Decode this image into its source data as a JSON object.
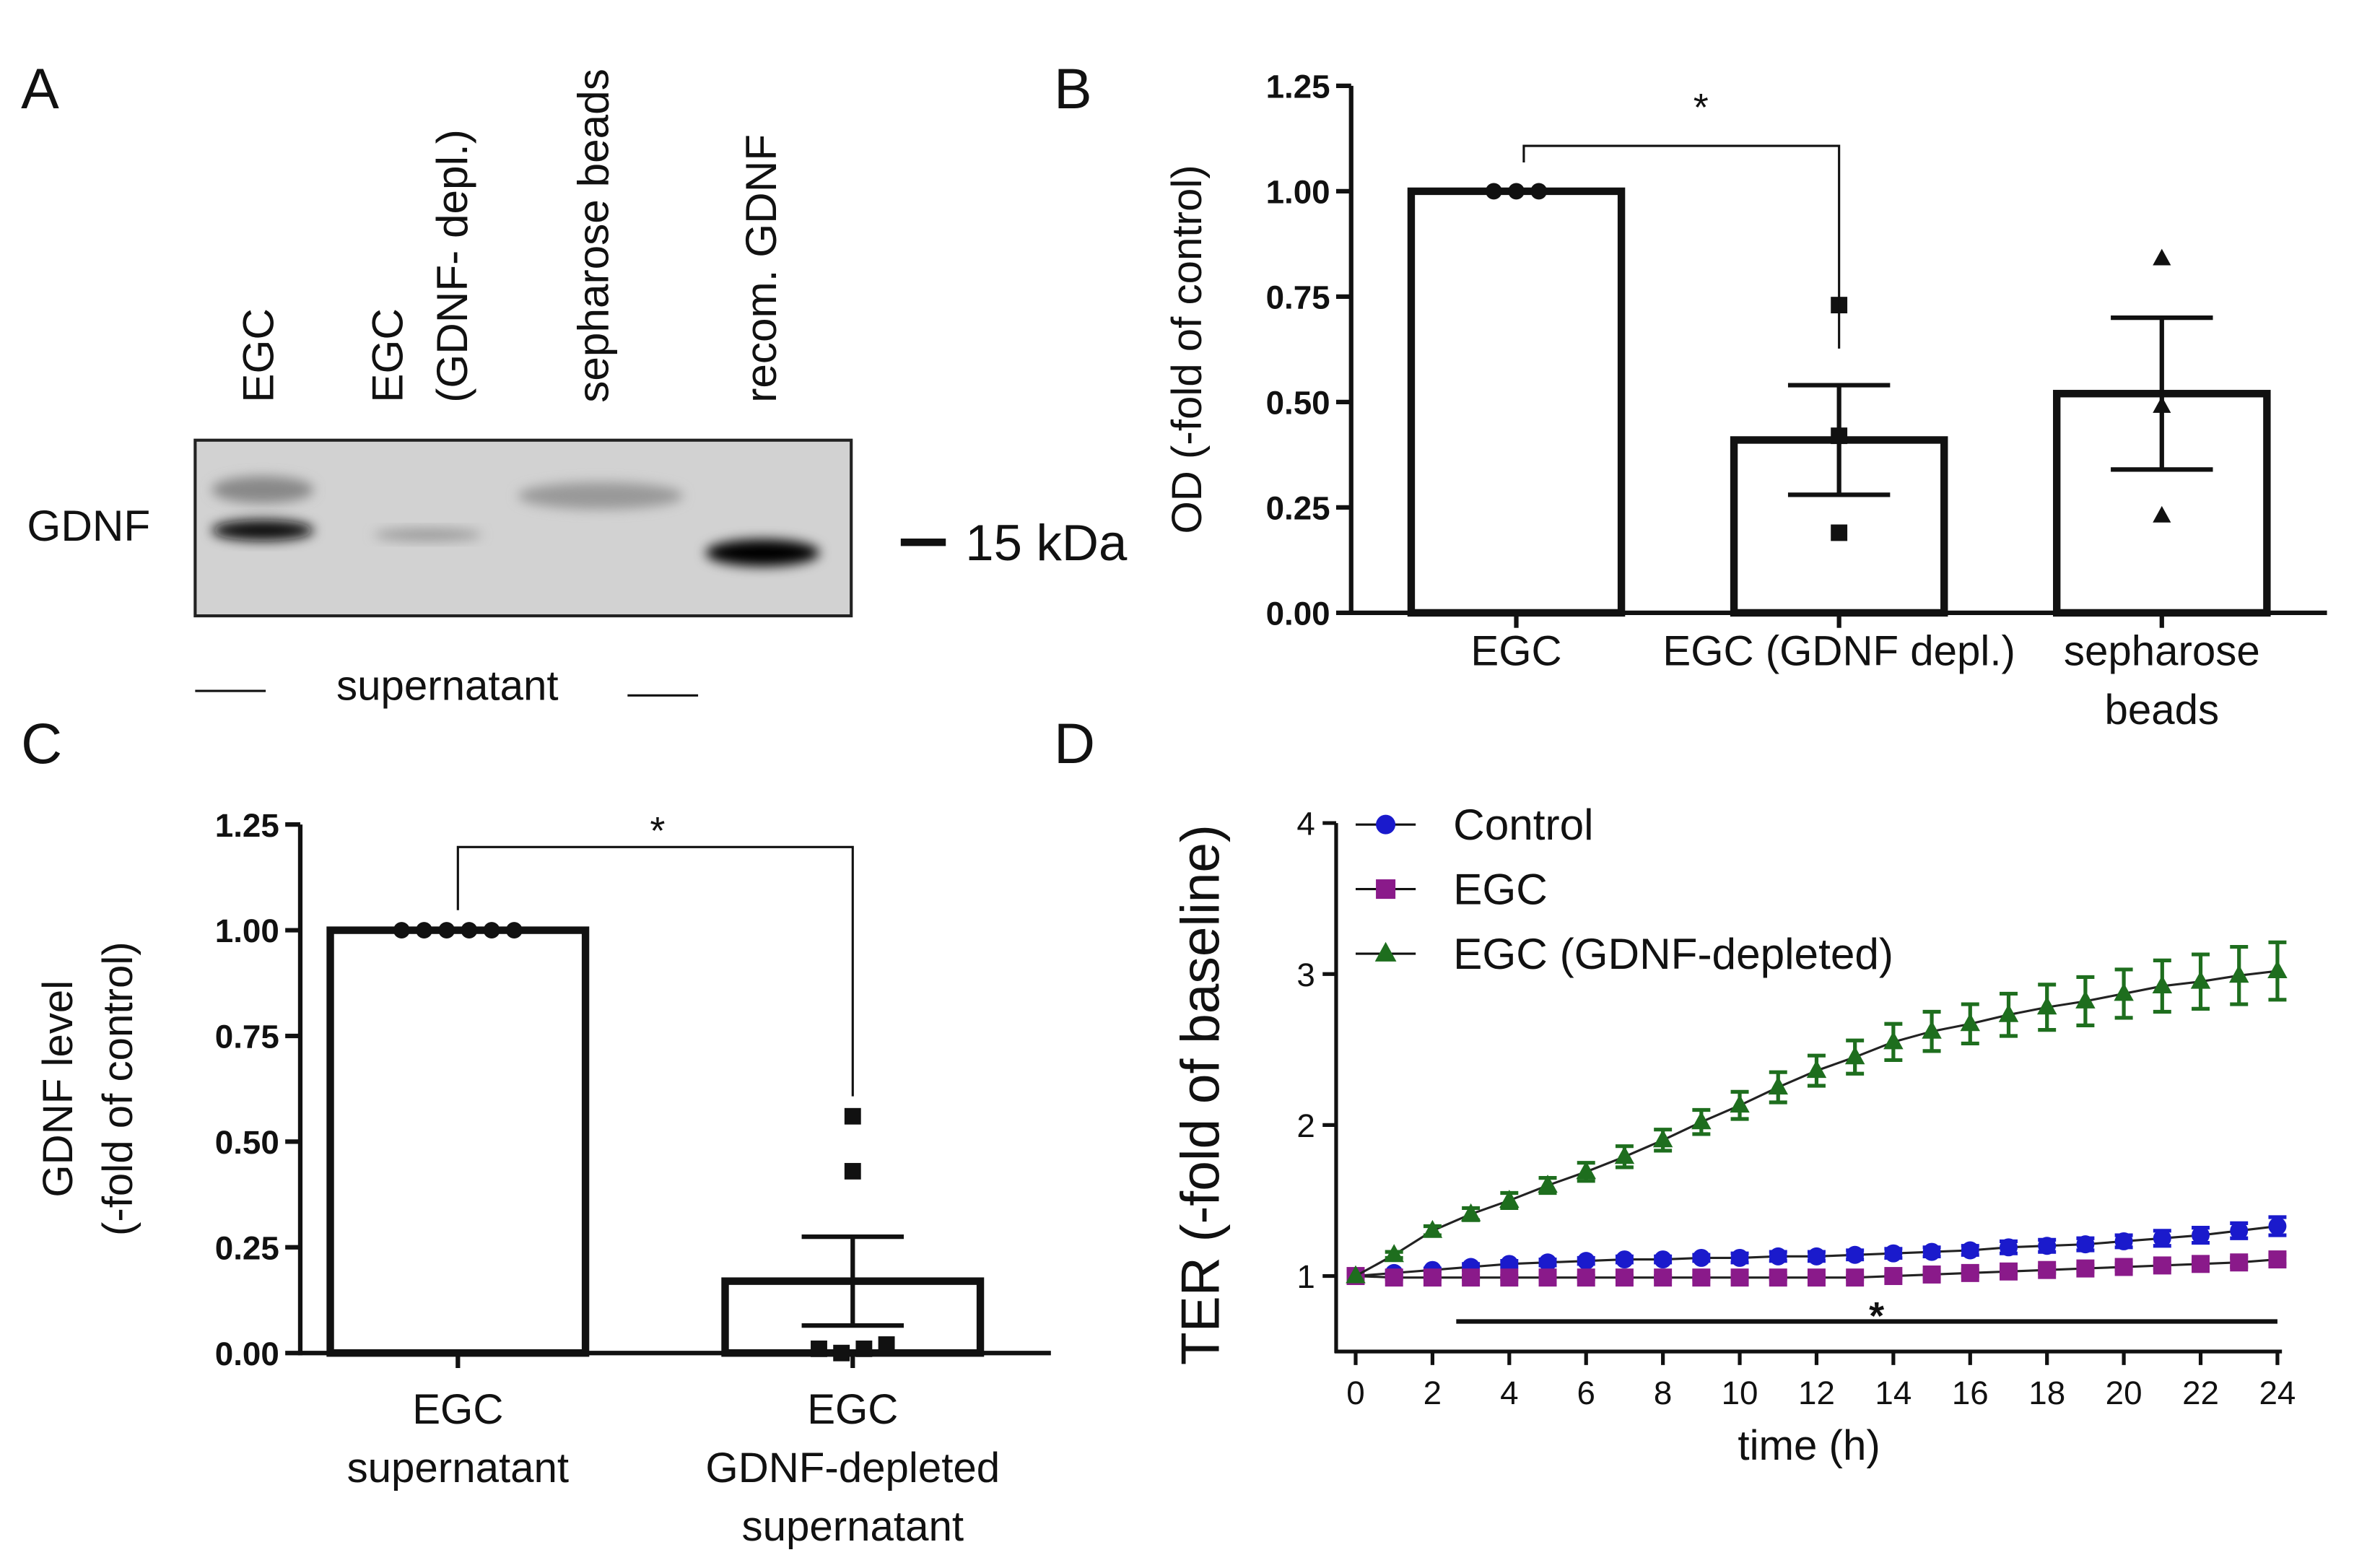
{
  "panel_labels": [
    "A",
    "B",
    "C",
    "D"
  ],
  "blot": {
    "lanes": [
      [
        "EGC"
      ],
      [
        "EGC",
        "(GDNF- depl.)"
      ],
      [
        "sepharose beads"
      ],
      [
        "recom. GDNF"
      ]
    ],
    "band_label": "GDNF",
    "size_marker": "15 kDa",
    "sample_label": "supernatant"
  },
  "chart_data": [
    {
      "type": "bar",
      "categories": [
        [
          "EGC"
        ],
        [
          "EGC (GDNF depl.)"
        ],
        [
          "sepharose",
          "beads"
        ]
      ],
      "values": [
        1.0,
        0.41,
        0.52
      ],
      "errors": [
        0,
        0.13,
        0.18
      ],
      "points": [
        [
          1.0,
          1.0,
          1.0
        ],
        [
          0.73,
          0.42,
          0.19
        ],
        [
          0.84,
          0.49,
          0.23
        ]
      ],
      "markers": [
        "circle",
        "square",
        "triangle"
      ],
      "ylabel": [
        "OD (-fold of control)"
      ],
      "ylim": [
        0,
        1.25
      ],
      "yticks": [
        {
          "value": 0,
          "label": "0.00"
        },
        {
          "value": 0.25,
          "label": "0.25"
        },
        {
          "value": 0.5,
          "label": "0.50"
        },
        {
          "value": 0.75,
          "label": "0.75"
        },
        {
          "value": 1,
          "label": "1.00"
        },
        {
          "value": 1.25,
          "label": "1.25"
        }
      ],
      "annotation": "*",
      "color": "#ffffff"
    },
    {
      "type": "bar",
      "categories": [
        [
          "EGC",
          "supernatant"
        ],
        [
          "EGC",
          "GDNF-depleted",
          "supernatant"
        ]
      ],
      "values": [
        1.0,
        0.17
      ],
      "errors": [
        0,
        0.105
      ],
      "points": [
        [
          1.0,
          1.0,
          1.0,
          1.0,
          1.0,
          1.0
        ],
        [
          0.56,
          0.43,
          0.01,
          0,
          0.01,
          0.02
        ]
      ],
      "markers": [
        "circle",
        "square"
      ],
      "ylabel": [
        "GDNF level",
        "(-fold of control)"
      ],
      "ylim": [
        0,
        1.25
      ],
      "yticks": [
        {
          "value": 0,
          "label": "0.00"
        },
        {
          "value": 0.25,
          "label": "0.25"
        },
        {
          "value": 0.5,
          "label": "0.50"
        },
        {
          "value": 0.75,
          "label": "0.75"
        },
        {
          "value": 1,
          "label": "1.00"
        },
        {
          "value": 1.25,
          "label": "1.25"
        }
      ],
      "annotation": "*",
      "color": "#ffffff"
    },
    {
      "type": "line",
      "x": [
        0,
        1,
        2,
        3,
        4,
        5,
        6,
        7,
        8,
        9,
        10,
        11,
        12,
        13,
        14,
        15,
        16,
        17,
        18,
        19,
        20,
        21,
        22,
        23,
        24
      ],
      "series": [
        {
          "name": "Control",
          "color": "#1a1acc",
          "marker": "circle",
          "values": [
            1.0,
            1.02,
            1.04,
            1.06,
            1.08,
            1.09,
            1.1,
            1.11,
            1.11,
            1.12,
            1.12,
            1.13,
            1.13,
            1.14,
            1.15,
            1.16,
            1.17,
            1.19,
            1.2,
            1.21,
            1.23,
            1.25,
            1.27,
            1.3,
            1.33
          ],
          "errors": [
            0,
            0.01,
            0.01,
            0.02,
            0.02,
            0.02,
            0.02,
            0.02,
            0.02,
            0.02,
            0.03,
            0.03,
            0.03,
            0.03,
            0.03,
            0.03,
            0.03,
            0.04,
            0.04,
            0.04,
            0.04,
            0.05,
            0.05,
            0.05,
            0.06
          ]
        },
        {
          "name": "EGC",
          "color": "#8a1a8a",
          "marker": "square",
          "values": [
            1.0,
            0.99,
            0.99,
            0.99,
            0.99,
            0.99,
            0.99,
            0.99,
            0.99,
            0.99,
            0.99,
            0.99,
            0.99,
            0.99,
            1.0,
            1.01,
            1.02,
            1.03,
            1.04,
            1.05,
            1.06,
            1.07,
            1.08,
            1.09,
            1.11
          ],
          "errors": [
            0,
            0.01,
            0.01,
            0.01,
            0.01,
            0.01,
            0.01,
            0.01,
            0.01,
            0.01,
            0.01,
            0.01,
            0.01,
            0.01,
            0.01,
            0.02,
            0.02,
            0.02,
            0.02,
            0.02,
            0.02,
            0.02,
            0.02,
            0.03,
            0.03
          ]
        },
        {
          "name": "EGC (GDNF-depleted)",
          "color": "#1e6e1e",
          "marker": "triangle",
          "values": [
            1.0,
            1.14,
            1.3,
            1.41,
            1.5,
            1.6,
            1.69,
            1.79,
            1.9,
            2.02,
            2.13,
            2.25,
            2.36,
            2.45,
            2.55,
            2.62,
            2.67,
            2.73,
            2.78,
            2.82,
            2.87,
            2.92,
            2.95,
            2.99,
            3.02
          ],
          "errors": [
            0,
            0.02,
            0.03,
            0.04,
            0.05,
            0.05,
            0.06,
            0.07,
            0.07,
            0.08,
            0.09,
            0.1,
            0.1,
            0.11,
            0.12,
            0.13,
            0.13,
            0.14,
            0.15,
            0.16,
            0.16,
            0.17,
            0.18,
            0.19,
            0.19
          ]
        }
      ],
      "xlabel": "time (h)",
      "ylabel": [
        "TER (-fold of baseline)"
      ],
      "xlim": [
        0,
        24
      ],
      "xticks": [
        0,
        2,
        4,
        6,
        8,
        10,
        12,
        14,
        16,
        18,
        20,
        22,
        24
      ],
      "ylim": [
        0.5,
        4
      ],
      "yticks": [
        1,
        2,
        3,
        4
      ],
      "legend": "upper left",
      "annotation": "*"
    }
  ]
}
